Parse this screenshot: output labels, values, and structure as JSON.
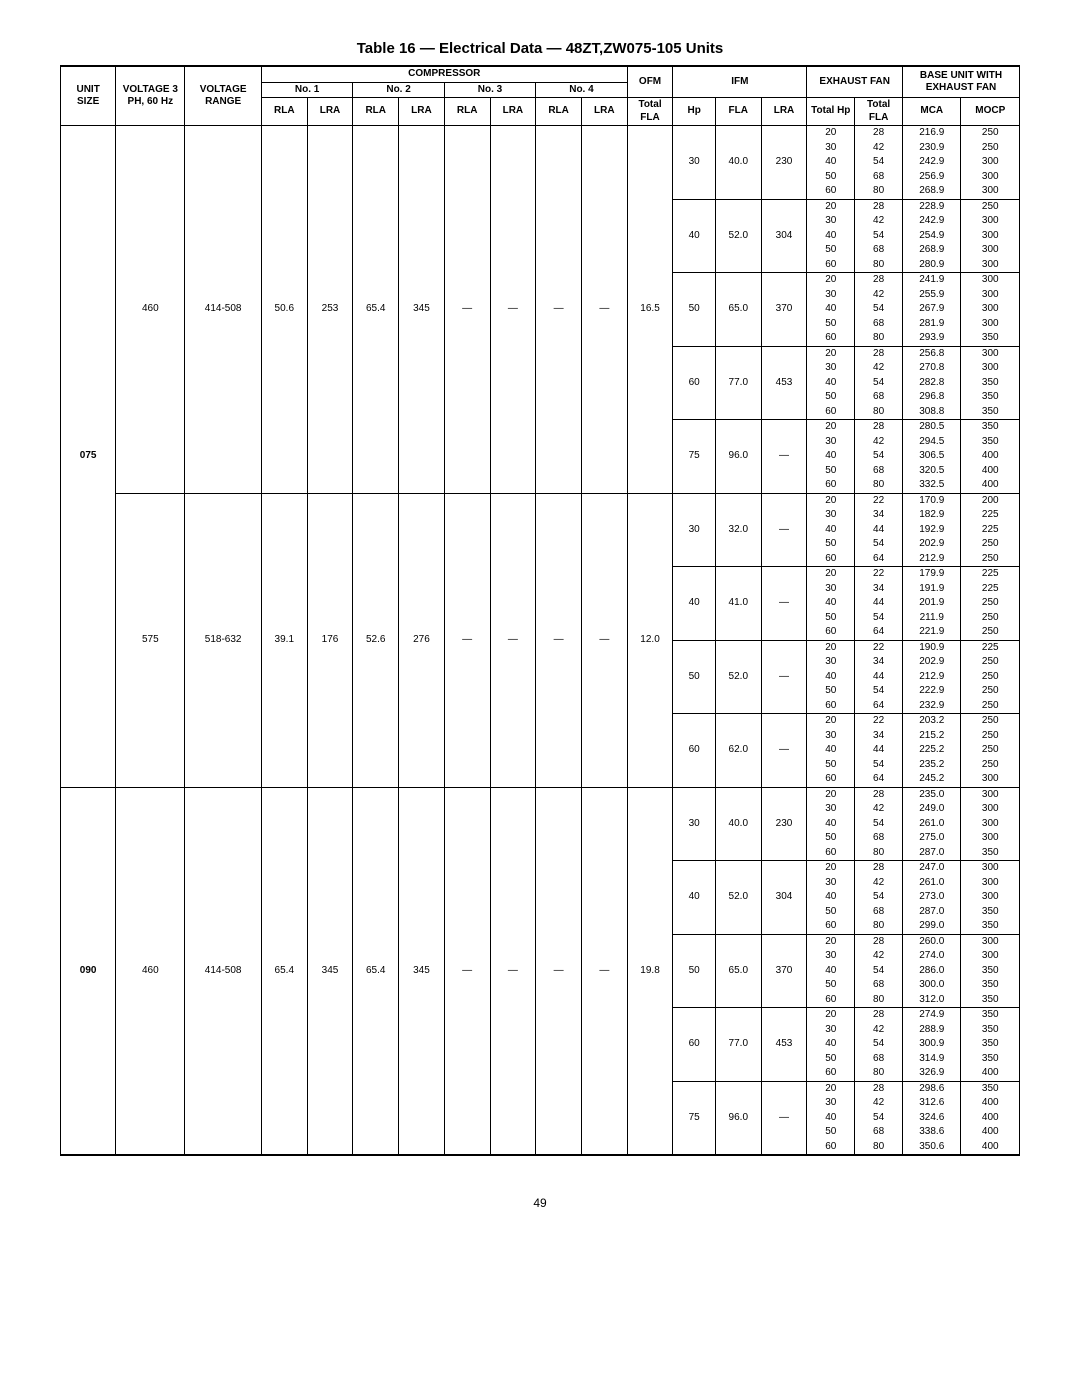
{
  "title": "Table 16 — Electrical Data — 48ZT,ZW075-105 Units",
  "pagenum": "49",
  "headers": {
    "h_unit": "UNIT SIZE",
    "h_volt": "VOLTAGE 3 PH, 60 Hz",
    "h_vrange": "VOLTAGE RANGE",
    "h_comp": "COMPRESSOR",
    "h_ofm": "OFM",
    "h_ifm": "IFM",
    "h_exfan": "EXHAUST FAN",
    "h_base": "BASE UNIT WITH EXHAUST FAN",
    "h_no1": "No. 1",
    "h_no2": "No. 2",
    "h_no3": "No. 3",
    "h_no4": "No. 4",
    "h_rla": "RLA",
    "h_lra": "LRA",
    "h_totfla": "Total FLA",
    "h_hp": "Hp",
    "h_fla": "FLA",
    "h_tothp": "Total Hp",
    "h_mca": "MCA",
    "h_mocp": "MOCP"
  },
  "blocks": [
    {
      "unit_size": "075",
      "voltage_groups": [
        {
          "voltage": "460",
          "vrange": "414-508",
          "comp": {
            "c1_rla": "50.6",
            "c1_lra": "253",
            "c2_rla": "65.4",
            "c2_lra": "345",
            "c3_rla": "—",
            "c3_lra": "—",
            "c4_rla": "—",
            "c4_lra": "—"
          },
          "ofm_totfla": "16.5",
          "ifm_groups": [
            {
              "hp": "30",
              "fla": "40.0",
              "lra": "230",
              "exhaust_rows": [
                {
                  "thp": "20",
                  "tfla": "28",
                  "mca": "216.9",
                  "mocp": "250"
                },
                {
                  "thp": "30",
                  "tfla": "42",
                  "mca": "230.9",
                  "mocp": "250"
                },
                {
                  "thp": "40",
                  "tfla": "54",
                  "mca": "242.9",
                  "mocp": "300"
                },
                {
                  "thp": "50",
                  "tfla": "68",
                  "mca": "256.9",
                  "mocp": "300"
                },
                {
                  "thp": "60",
                  "tfla": "80",
                  "mca": "268.9",
                  "mocp": "300"
                }
              ]
            },
            {
              "hp": "40",
              "fla": "52.0",
              "lra": "304",
              "exhaust_rows": [
                {
                  "thp": "20",
                  "tfla": "28",
                  "mca": "228.9",
                  "mocp": "250"
                },
                {
                  "thp": "30",
                  "tfla": "42",
                  "mca": "242.9",
                  "mocp": "300"
                },
                {
                  "thp": "40",
                  "tfla": "54",
                  "mca": "254.9",
                  "mocp": "300"
                },
                {
                  "thp": "50",
                  "tfla": "68",
                  "mca": "268.9",
                  "mocp": "300"
                },
                {
                  "thp": "60",
                  "tfla": "80",
                  "mca": "280.9",
                  "mocp": "300"
                }
              ]
            },
            {
              "hp": "50",
              "fla": "65.0",
              "lra": "370",
              "exhaust_rows": [
                {
                  "thp": "20",
                  "tfla": "28",
                  "mca": "241.9",
                  "mocp": "300"
                },
                {
                  "thp": "30",
                  "tfla": "42",
                  "mca": "255.9",
                  "mocp": "300"
                },
                {
                  "thp": "40",
                  "tfla": "54",
                  "mca": "267.9",
                  "mocp": "300"
                },
                {
                  "thp": "50",
                  "tfla": "68",
                  "mca": "281.9",
                  "mocp": "300"
                },
                {
                  "thp": "60",
                  "tfla": "80",
                  "mca": "293.9",
                  "mocp": "350"
                }
              ]
            },
            {
              "hp": "60",
              "fla": "77.0",
              "lra": "453",
              "exhaust_rows": [
                {
                  "thp": "20",
                  "tfla": "28",
                  "mca": "256.8",
                  "mocp": "300"
                },
                {
                  "thp": "30",
                  "tfla": "42",
                  "mca": "270.8",
                  "mocp": "300"
                },
                {
                  "thp": "40",
                  "tfla": "54",
                  "mca": "282.8",
                  "mocp": "350"
                },
                {
                  "thp": "50",
                  "tfla": "68",
                  "mca": "296.8",
                  "mocp": "350"
                },
                {
                  "thp": "60",
                  "tfla": "80",
                  "mca": "308.8",
                  "mocp": "350"
                }
              ]
            },
            {
              "hp": "75",
              "fla": "96.0",
              "lra": "—",
              "exhaust_rows": [
                {
                  "thp": "20",
                  "tfla": "28",
                  "mca": "280.5",
                  "mocp": "350"
                },
                {
                  "thp": "30",
                  "tfla": "42",
                  "mca": "294.5",
                  "mocp": "350"
                },
                {
                  "thp": "40",
                  "tfla": "54",
                  "mca": "306.5",
                  "mocp": "400"
                },
                {
                  "thp": "50",
                  "tfla": "68",
                  "mca": "320.5",
                  "mocp": "400"
                },
                {
                  "thp": "60",
                  "tfla": "80",
                  "mca": "332.5",
                  "mocp": "400"
                }
              ]
            }
          ]
        },
        {
          "voltage": "575",
          "vrange": "518-632",
          "comp": {
            "c1_rla": "39.1",
            "c1_lra": "176",
            "c2_rla": "52.6",
            "c2_lra": "276",
            "c3_rla": "—",
            "c3_lra": "—",
            "c4_rla": "—",
            "c4_lra": "—"
          },
          "ofm_totfla": "12.0",
          "ifm_groups": [
            {
              "hp": "30",
              "fla": "32.0",
              "lra": "—",
              "exhaust_rows": [
                {
                  "thp": "20",
                  "tfla": "22",
                  "mca": "170.9",
                  "mocp": "200"
                },
                {
                  "thp": "30",
                  "tfla": "34",
                  "mca": "182.9",
                  "mocp": "225"
                },
                {
                  "thp": "40",
                  "tfla": "44",
                  "mca": "192.9",
                  "mocp": "225"
                },
                {
                  "thp": "50",
                  "tfla": "54",
                  "mca": "202.9",
                  "mocp": "250"
                },
                {
                  "thp": "60",
                  "tfla": "64",
                  "mca": "212.9",
                  "mocp": "250"
                }
              ]
            },
            {
              "hp": "40",
              "fla": "41.0",
              "lra": "—",
              "exhaust_rows": [
                {
                  "thp": "20",
                  "tfla": "22",
                  "mca": "179.9",
                  "mocp": "225"
                },
                {
                  "thp": "30",
                  "tfla": "34",
                  "mca": "191.9",
                  "mocp": "225"
                },
                {
                  "thp": "40",
                  "tfla": "44",
                  "mca": "201.9",
                  "mocp": "250"
                },
                {
                  "thp": "50",
                  "tfla": "54",
                  "mca": "211.9",
                  "mocp": "250"
                },
                {
                  "thp": "60",
                  "tfla": "64",
                  "mca": "221.9",
                  "mocp": "250"
                }
              ]
            },
            {
              "hp": "50",
              "fla": "52.0",
              "lra": "—",
              "exhaust_rows": [
                {
                  "thp": "20",
                  "tfla": "22",
                  "mca": "190.9",
                  "mocp": "225"
                },
                {
                  "thp": "30",
                  "tfla": "34",
                  "mca": "202.9",
                  "mocp": "250"
                },
                {
                  "thp": "40",
                  "tfla": "44",
                  "mca": "212.9",
                  "mocp": "250"
                },
                {
                  "thp": "50",
                  "tfla": "54",
                  "mca": "222.9",
                  "mocp": "250"
                },
                {
                  "thp": "60",
                  "tfla": "64",
                  "mca": "232.9",
                  "mocp": "250"
                }
              ]
            },
            {
              "hp": "60",
              "fla": "62.0",
              "lra": "—",
              "exhaust_rows": [
                {
                  "thp": "20",
                  "tfla": "22",
                  "mca": "203.2",
                  "mocp": "250"
                },
                {
                  "thp": "30",
                  "tfla": "34",
                  "mca": "215.2",
                  "mocp": "250"
                },
                {
                  "thp": "40",
                  "tfla": "44",
                  "mca": "225.2",
                  "mocp": "250"
                },
                {
                  "thp": "50",
                  "tfla": "54",
                  "mca": "235.2",
                  "mocp": "250"
                },
                {
                  "thp": "60",
                  "tfla": "64",
                  "mca": "245.2",
                  "mocp": "300"
                }
              ]
            }
          ]
        }
      ]
    },
    {
      "unit_size": "090",
      "voltage_groups": [
        {
          "voltage": "460",
          "vrange": "414-508",
          "comp": {
            "c1_rla": "65.4",
            "c1_lra": "345",
            "c2_rla": "65.4",
            "c2_lra": "345",
            "c3_rla": "—",
            "c3_lra": "—",
            "c4_rla": "—",
            "c4_lra": "—"
          },
          "ofm_totfla": "19.8",
          "ifm_groups": [
            {
              "hp": "30",
              "fla": "40.0",
              "lra": "230",
              "exhaust_rows": [
                {
                  "thp": "20",
                  "tfla": "28",
                  "mca": "235.0",
                  "mocp": "300"
                },
                {
                  "thp": "30",
                  "tfla": "42",
                  "mca": "249.0",
                  "mocp": "300"
                },
                {
                  "thp": "40",
                  "tfla": "54",
                  "mca": "261.0",
                  "mocp": "300"
                },
                {
                  "thp": "50",
                  "tfla": "68",
                  "mca": "275.0",
                  "mocp": "300"
                },
                {
                  "thp": "60",
                  "tfla": "80",
                  "mca": "287.0",
                  "mocp": "350"
                }
              ]
            },
            {
              "hp": "40",
              "fla": "52.0",
              "lra": "304",
              "exhaust_rows": [
                {
                  "thp": "20",
                  "tfla": "28",
                  "mca": "247.0",
                  "mocp": "300"
                },
                {
                  "thp": "30",
                  "tfla": "42",
                  "mca": "261.0",
                  "mocp": "300"
                },
                {
                  "thp": "40",
                  "tfla": "54",
                  "mca": "273.0",
                  "mocp": "300"
                },
                {
                  "thp": "50",
                  "tfla": "68",
                  "mca": "287.0",
                  "mocp": "350"
                },
                {
                  "thp": "60",
                  "tfla": "80",
                  "mca": "299.0",
                  "mocp": "350"
                }
              ]
            },
            {
              "hp": "50",
              "fla": "65.0",
              "lra": "370",
              "exhaust_rows": [
                {
                  "thp": "20",
                  "tfla": "28",
                  "mca": "260.0",
                  "mocp": "300"
                },
                {
                  "thp": "30",
                  "tfla": "42",
                  "mca": "274.0",
                  "mocp": "300"
                },
                {
                  "thp": "40",
                  "tfla": "54",
                  "mca": "286.0",
                  "mocp": "350"
                },
                {
                  "thp": "50",
                  "tfla": "68",
                  "mca": "300.0",
                  "mocp": "350"
                },
                {
                  "thp": "60",
                  "tfla": "80",
                  "mca": "312.0",
                  "mocp": "350"
                }
              ]
            },
            {
              "hp": "60",
              "fla": "77.0",
              "lra": "453",
              "exhaust_rows": [
                {
                  "thp": "20",
                  "tfla": "28",
                  "mca": "274.9",
                  "mocp": "350"
                },
                {
                  "thp": "30",
                  "tfla": "42",
                  "mca": "288.9",
                  "mocp": "350"
                },
                {
                  "thp": "40",
                  "tfla": "54",
                  "mca": "300.9",
                  "mocp": "350"
                },
                {
                  "thp": "50",
                  "tfla": "68",
                  "mca": "314.9",
                  "mocp": "350"
                },
                {
                  "thp": "60",
                  "tfla": "80",
                  "mca": "326.9",
                  "mocp": "400"
                }
              ]
            },
            {
              "hp": "75",
              "fla": "96.0",
              "lra": "—",
              "exhaust_rows": [
                {
                  "thp": "20",
                  "tfla": "28",
                  "mca": "298.6",
                  "mocp": "350"
                },
                {
                  "thp": "30",
                  "tfla": "42",
                  "mca": "312.6",
                  "mocp": "400"
                },
                {
                  "thp": "40",
                  "tfla": "54",
                  "mca": "324.6",
                  "mocp": "400"
                },
                {
                  "thp": "50",
                  "tfla": "68",
                  "mca": "338.6",
                  "mocp": "400"
                },
                {
                  "thp": "60",
                  "tfla": "80",
                  "mca": "350.6",
                  "mocp": "400"
                }
              ]
            }
          ]
        }
      ]
    }
  ],
  "colwidths_pct": [
    5.2,
    6.5,
    7.2,
    4.3,
    4.3,
    4.3,
    4.3,
    4.3,
    4.3,
    4.3,
    4.3,
    4.3,
    4.0,
    4.3,
    4.3,
    4.5,
    4.5,
    5.5,
    5.5
  ]
}
